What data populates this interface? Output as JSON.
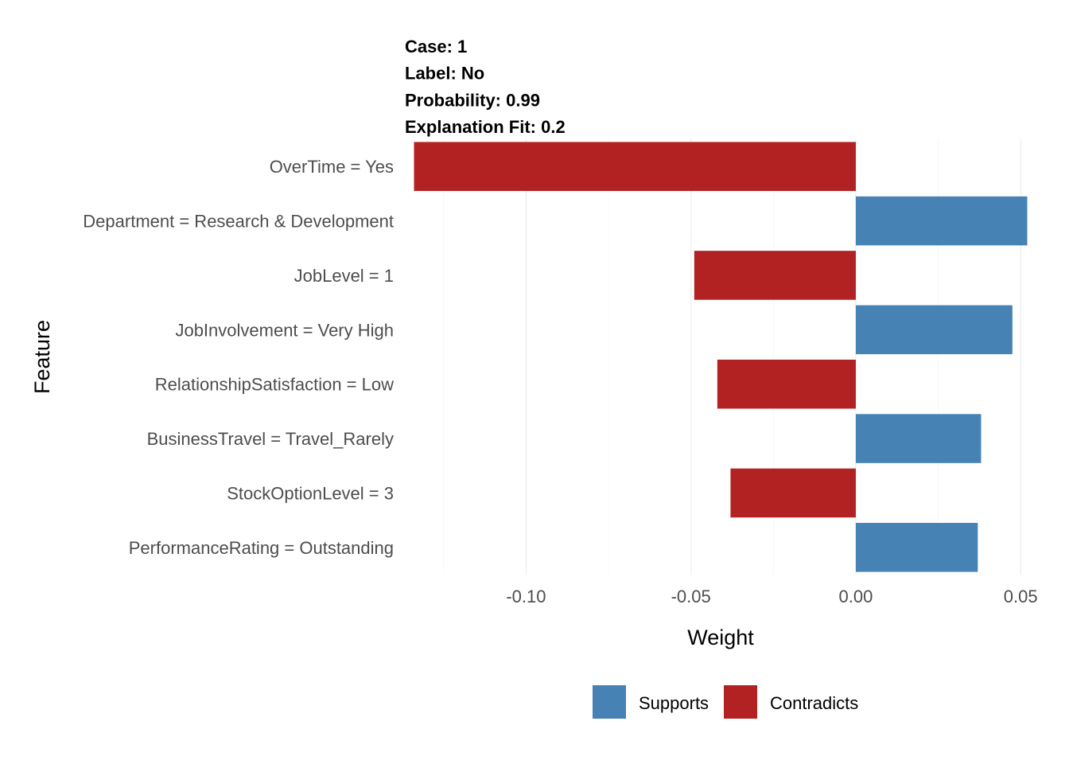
{
  "chart_data": {
    "type": "bar",
    "orientation": "horizontal",
    "title_lines": [
      "Case: 1",
      "Label: No",
      "Probability: 0.99",
      "Explanation Fit: 0.2"
    ],
    "categories": [
      "OverTime = Yes",
      "Department = Research & Development",
      "JobLevel = 1",
      "JobInvolvement = Very High",
      "RelationshipSatisfaction = Low",
      "BusinessTravel = Travel_Rarely",
      "StockOptionLevel = 3",
      "PerformanceRating = Outstanding"
    ],
    "values": [
      -0.134,
      0.052,
      -0.049,
      0.0475,
      -0.042,
      0.038,
      -0.038,
      0.037
    ],
    "groups": [
      "Contradicts",
      "Supports",
      "Contradicts",
      "Supports",
      "Contradicts",
      "Supports",
      "Contradicts",
      "Supports"
    ],
    "xlabel": "Weight",
    "ylabel": "Feature",
    "xlim": [
      -0.1375,
      0.0555
    ],
    "xticks": [
      -0.1,
      -0.05,
      0.0,
      0.05
    ],
    "xtick_labels": [
      "-0.10",
      "-0.05",
      "0.00",
      "0.05"
    ],
    "grid": true,
    "legend": {
      "position": "bottom",
      "entries": [
        {
          "label": "Supports",
          "color": "#4682B4"
        },
        {
          "label": "Contradicts",
          "color": "#B22222"
        }
      ]
    },
    "colors": {
      "Supports": "#4682B4",
      "Contradicts": "#B22222"
    }
  }
}
